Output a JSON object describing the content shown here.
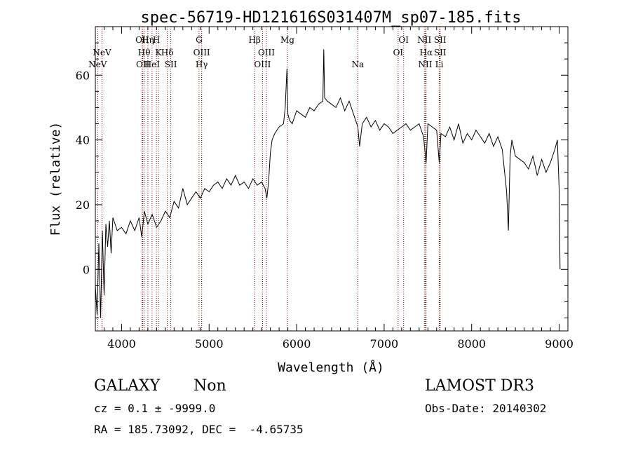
{
  "chart_data": {
    "type": "line",
    "title": "spec-56719-HD121616S031407M_sp07-185.fits",
    "xlabel": "Wavelength (Å)",
    "ylabel": "Flux (relative)",
    "xlim": [
      3700,
      9100
    ],
    "ylim": [
      -19,
      75
    ],
    "x_ticks": [
      4000,
      5000,
      6000,
      7000,
      8000,
      9000
    ],
    "y_ticks": [
      0,
      20,
      40,
      60
    ],
    "grid": false,
    "line_color": "#000000",
    "marker_color": "#8b0000",
    "series": [
      {
        "x": [
          3700,
          3720,
          3740,
          3760,
          3780,
          3800,
          3820,
          3840,
          3860,
          3880,
          3900,
          3950,
          4000,
          4050,
          4100,
          4150,
          4200,
          4230,
          4260,
          4300,
          4350,
          4400,
          4450,
          4500,
          4550,
          4600,
          4650,
          4700,
          4750,
          4800,
          4850,
          4900,
          4950,
          5000,
          5050,
          5100,
          5150,
          5200,
          5250,
          5300,
          5350,
          5400,
          5450,
          5500,
          5550,
          5600,
          5640,
          5660,
          5680,
          5700,
          5720,
          5750,
          5800,
          5850,
          5870,
          5890,
          5900,
          5920,
          5950,
          6000,
          6050,
          6100,
          6150,
          6200,
          6250,
          6300,
          6310,
          6320,
          6350,
          6400,
          6450,
          6500,
          6550,
          6600,
          6650,
          6700,
          6720,
          6750,
          6800,
          6850,
          6900,
          6950,
          7000,
          7050,
          7100,
          7150,
          7200,
          7250,
          7300,
          7350,
          7400,
          7450,
          7480,
          7500,
          7550,
          7600,
          7630,
          7650,
          7700,
          7750,
          7800,
          7850,
          7900,
          7950,
          8000,
          8050,
          8100,
          8150,
          8200,
          8250,
          8300,
          8350,
          8400,
          8420,
          8440,
          8460,
          8500,
          8550,
          8600,
          8650,
          8700,
          8750,
          8800,
          8850,
          8900,
          8950,
          8980,
          9000,
          9010
        ],
        "y": [
          -5,
          -14,
          8,
          -15,
          12,
          -8,
          14,
          7,
          15,
          5,
          16,
          12,
          13,
          11,
          15,
          12,
          16,
          10,
          18,
          14,
          17,
          13,
          15,
          18,
          16,
          21,
          19,
          25,
          20,
          22,
          24,
          22,
          25,
          24,
          26,
          27,
          25,
          28,
          26,
          29,
          26,
          27,
          25,
          28,
          26,
          27,
          25,
          22,
          27,
          36,
          40,
          42,
          44,
          45,
          50,
          62,
          48,
          46,
          45,
          49,
          48,
          47,
          50,
          49,
          51,
          52,
          68,
          53,
          52,
          51,
          50,
          53,
          49,
          52,
          48,
          44,
          38,
          45,
          47,
          44,
          46,
          43,
          45,
          44,
          42,
          43,
          44,
          45,
          43,
          44,
          45,
          41,
          33,
          45,
          44,
          43,
          33,
          42,
          41,
          44,
          40,
          45,
          39,
          42,
          40,
          43,
          41,
          39,
          42,
          38,
          41,
          37,
          24,
          12,
          35,
          40,
          35,
          34,
          33,
          31,
          35,
          29,
          34,
          30,
          33,
          37,
          40,
          25,
          0
        ]
      }
    ],
    "line_markers": [
      {
        "label": "NeV",
        "wavelength": 3726,
        "row": 3
      },
      {
        "label": "NeV",
        "wavelength": 3776,
        "row": 2
      },
      {
        "label": "OII",
        "wavelength": 4235,
        "row": 1
      },
      {
        "label": "OII",
        "wavelength": 4242,
        "row": 3
      },
      {
        "label": "Hθ",
        "wavelength": 4258,
        "row": 2
      },
      {
        "label": "Hη",
        "wavelength": 4300,
        "row": 1
      },
      {
        "label": "HeI",
        "wavelength": 4348,
        "row": 3
      },
      {
        "label": "H",
        "wavelength": 4398,
        "row": 1
      },
      {
        "label": "K",
        "wavelength": 4421,
        "row": 2
      },
      {
        "label": "Hδ",
        "wavelength": 4522,
        "row": 2
      },
      {
        "label": "SII",
        "wavelength": 4562,
        "row": 3
      },
      {
        "label": "G",
        "wavelength": 4885,
        "row": 1
      },
      {
        "label": "OIII",
        "wavelength": 4915,
        "row": 2
      },
      {
        "label": "Hγ",
        "wavelength": 4915,
        "row": 3
      },
      {
        "label": "Hβ",
        "wavelength": 5520,
        "row": 1
      },
      {
        "label": "OIII",
        "wavelength": 5655,
        "row": 2
      },
      {
        "label": "OIII",
        "wavelength": 5610,
        "row": 3
      },
      {
        "label": "Mg",
        "wavelength": 5895,
        "row": 1
      },
      {
        "label": "Na",
        "wavelength": 6700,
        "row": 3
      },
      {
        "label": "OI",
        "wavelength": 7223,
        "row": 1
      },
      {
        "label": "OI",
        "wavelength": 7160,
        "row": 2
      },
      {
        "label": "NII",
        "wavelength": 7460,
        "row": 1
      },
      {
        "label": "Hα",
        "wavelength": 7480,
        "row": 2
      },
      {
        "label": "NII",
        "wavelength": 7470,
        "row": 3
      },
      {
        "label": "SII",
        "wavelength": 7640,
        "row": 1
      },
      {
        "label": "SII",
        "wavelength": 7640,
        "row": 2
      },
      {
        "label": "Li",
        "wavelength": 7630,
        "row": 3
      }
    ]
  },
  "footer": {
    "class_label": "GALAXY",
    "subclass_label": "Non",
    "survey_label": "LAMOST DR3",
    "cz_line": "cz = 0.1 ± -9999.0",
    "obs_date": "Obs-Date: 20140302",
    "radec_line": "RA = 185.73092, DEC =  -4.65735"
  }
}
